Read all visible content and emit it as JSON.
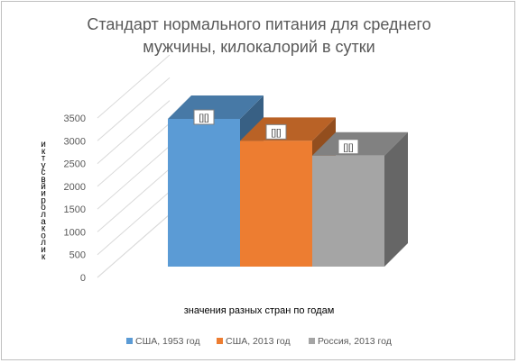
{
  "chart_data": {
    "type": "bar",
    "title_lines": [
      "Стандарт нормального питания для среднего",
      "мужчины, килокалорий в сутки"
    ],
    "xlabel": "значения разных стран по годам",
    "ylabel": "килокалорий в сутки",
    "ylim": [
      0,
      3500
    ],
    "y_ticks": [
      "0",
      "500",
      "1000",
      "1500",
      "2000",
      "2500",
      "3000",
      "3500"
    ],
    "grid": true,
    "legend_position": "bottom",
    "data_labels": [
      "[][]",
      "[][]",
      "[][]"
    ],
    "series": [
      {
        "name": "США, 1953  год",
        "values": [
          3300
        ],
        "color": "#5B9BD5"
      },
      {
        "name": "США, 2013  год",
        "values": [
          2810
        ],
        "color": "#ED7D31"
      },
      {
        "name": "Россия, 2013 год",
        "values": [
          2480
        ],
        "color": "#A5A5A5"
      }
    ]
  }
}
